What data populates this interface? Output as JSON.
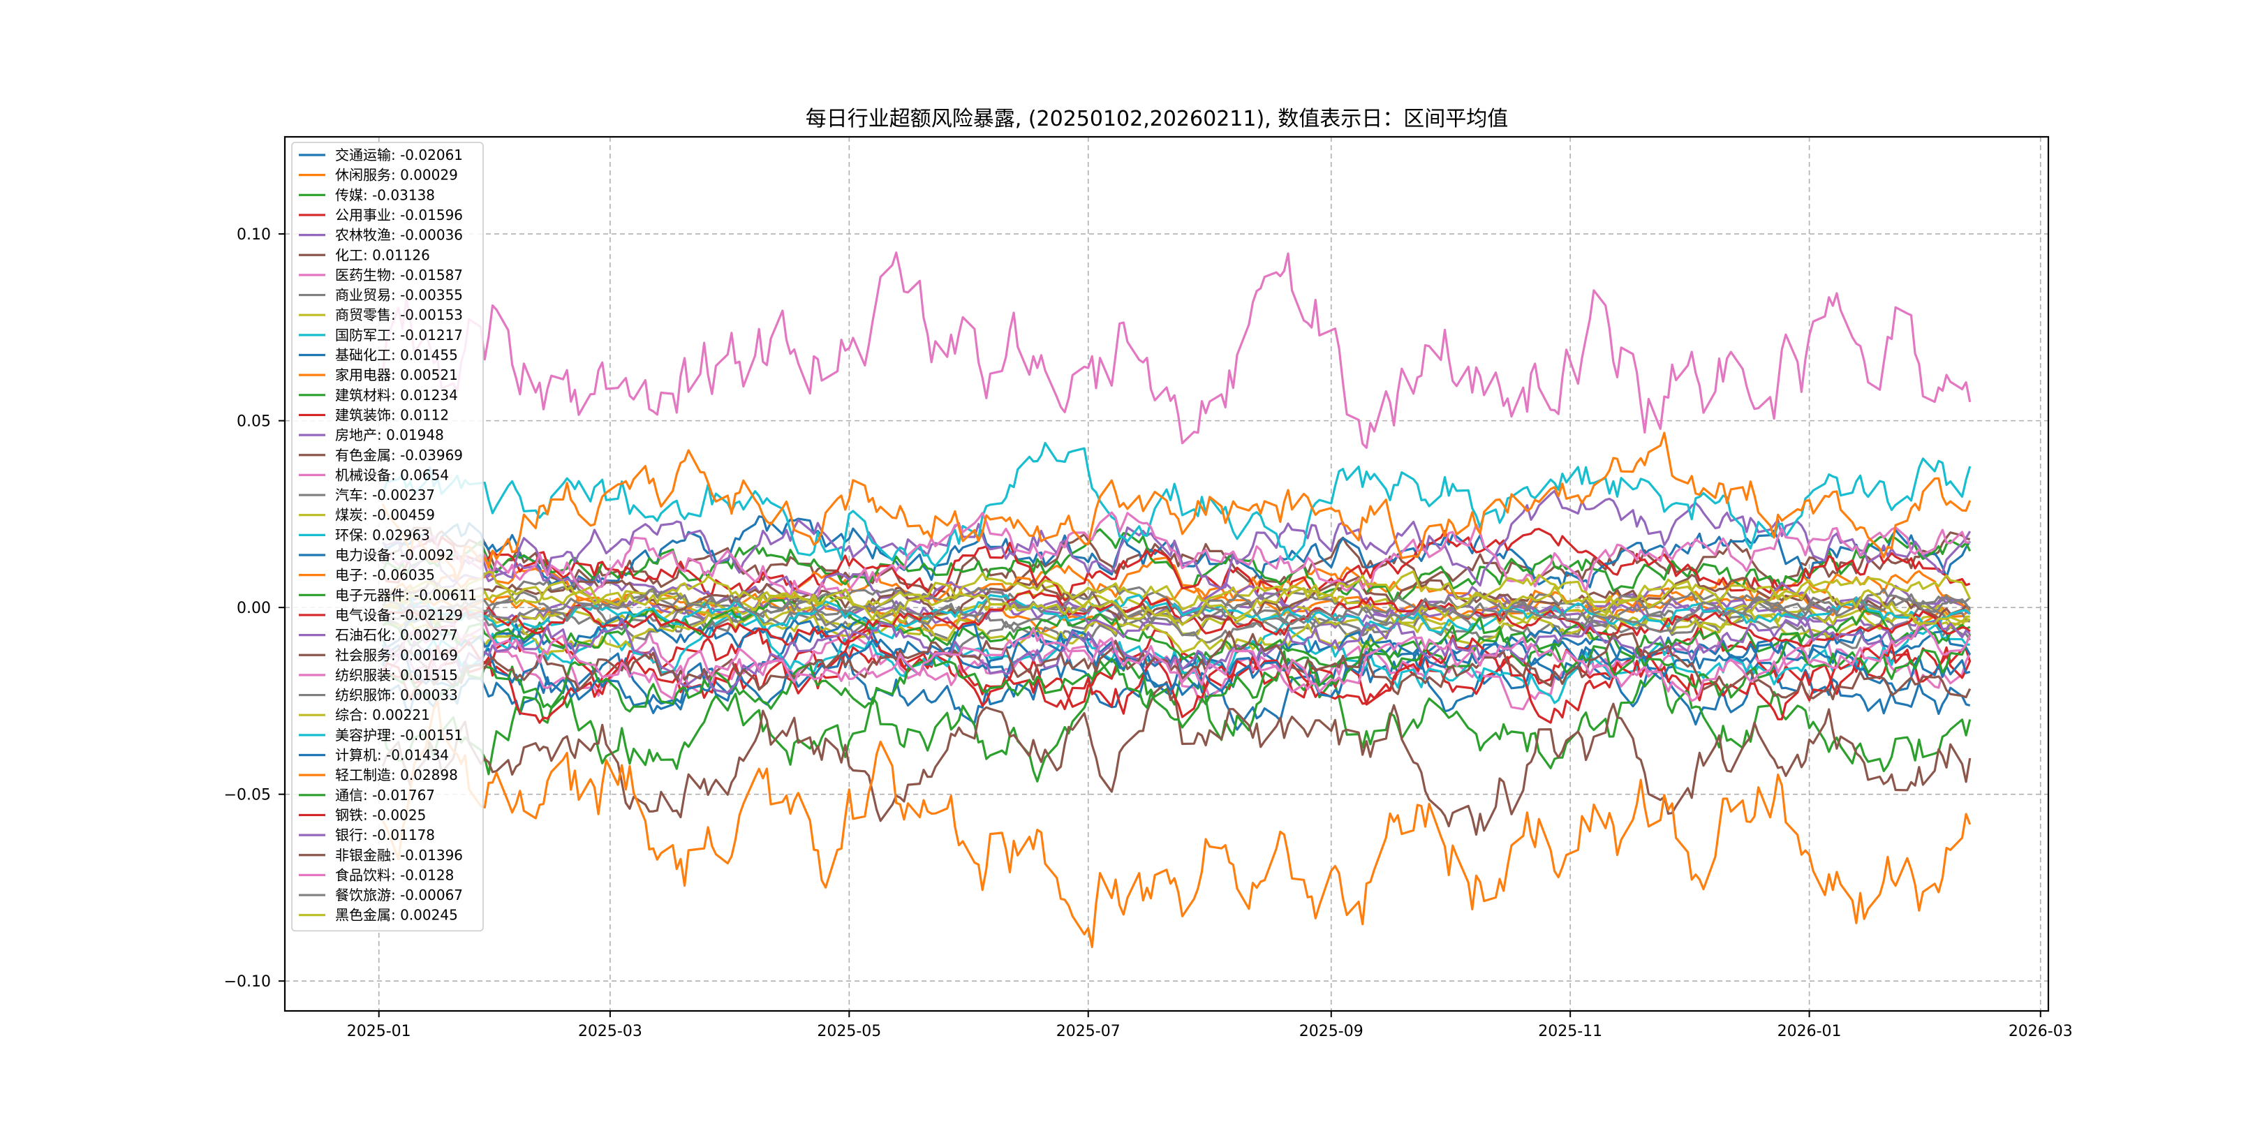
{
  "chart_data": {
    "type": "line",
    "title": "每日行业超额风险暴露, (20250102,20260211),  数值表示日：区间平均值",
    "xlabel": "",
    "ylabel": "",
    "x_start": "2025-01-02",
    "x_end": "2026-02-11",
    "xlim": [
      "2024-12-08",
      "2026-03-03"
    ],
    "ylim": [
      -0.108,
      0.126
    ],
    "x_ticks": [
      "2025-01-01",
      "2025-03-01",
      "2025-05-01",
      "2025-07-01",
      "2025-09-01",
      "2025-11-01",
      "2026-01-01",
      "2026-03-01"
    ],
    "x_tick_labels": [
      "2025-01",
      "2025-03",
      "2025-05",
      "2025-07",
      "2025-09",
      "2025-11",
      "2026-01",
      "2026-03"
    ],
    "y_ticks": [
      -0.1,
      -0.05,
      0.0,
      0.05,
      0.1
    ],
    "y_tick_labels": [
      "−0.10",
      "−0.05",
      "0.00",
      "0.05",
      "0.10"
    ],
    "grid": true,
    "legend_position": "top-left",
    "series": [
      {
        "name": "交通运输",
        "label": "交通运输: -0.02061",
        "color": "#1f77b4",
        "mean": -0.02061
      },
      {
        "name": "休闲服务",
        "label": "休闲服务: 0.00029",
        "color": "#ff7f0e",
        "mean": 0.00029
      },
      {
        "name": "传媒",
        "label": "传媒: -0.03138",
        "color": "#2ca02c",
        "mean": -0.03138
      },
      {
        "name": "公用事业",
        "label": "公用事业: -0.01596",
        "color": "#d62728",
        "mean": -0.01596
      },
      {
        "name": "农林牧渔",
        "label": "农林牧渔: -0.00036",
        "color": "#9467bd",
        "mean": -0.00036
      },
      {
        "name": "化工",
        "label": "化工: 0.01126",
        "color": "#8c564b",
        "mean": 0.01126
      },
      {
        "name": "医药生物",
        "label": "医药生物: -0.01587",
        "color": "#e377c2",
        "mean": -0.01587
      },
      {
        "name": "商业贸易",
        "label": "商业贸易: -0.00355",
        "color": "#7f7f7f",
        "mean": -0.00355
      },
      {
        "name": "商贸零售",
        "label": "商贸零售: -0.00153",
        "color": "#bcbd22",
        "mean": -0.00153
      },
      {
        "name": "国防军工",
        "label": "国防军工: -0.01217",
        "color": "#17becf",
        "mean": -0.01217
      },
      {
        "name": "基础化工",
        "label": "基础化工: 0.01455",
        "color": "#1f77b4",
        "mean": 0.01455
      },
      {
        "name": "家用电器",
        "label": "家用电器: 0.00521",
        "color": "#ff7f0e",
        "mean": 0.00521
      },
      {
        "name": "建筑材料",
        "label": "建筑材料: 0.01234",
        "color": "#2ca02c",
        "mean": 0.01234
      },
      {
        "name": "建筑装饰",
        "label": "建筑装饰: 0.0112",
        "color": "#d62728",
        "mean": 0.0112
      },
      {
        "name": "房地产",
        "label": "房地产: 0.01948",
        "color": "#9467bd",
        "mean": 0.01948
      },
      {
        "name": "有色金属",
        "label": "有色金属: -0.03969",
        "color": "#8c564b",
        "mean": -0.03969
      },
      {
        "name": "机械设备",
        "label": "机械设备: 0.0654",
        "color": "#e377c2",
        "mean": 0.0654
      },
      {
        "name": "汽车",
        "label": "汽车: -0.00237",
        "color": "#7f7f7f",
        "mean": -0.00237
      },
      {
        "name": "煤炭",
        "label": "煤炭: -0.00459",
        "color": "#bcbd22",
        "mean": -0.00459
      },
      {
        "name": "环保",
        "label": "环保: 0.02963",
        "color": "#17becf",
        "mean": 0.02963
      },
      {
        "name": "电力设备",
        "label": "电力设备: -0.0092",
        "color": "#1f77b4",
        "mean": -0.0092
      },
      {
        "name": "电子",
        "label": "电子: -0.06035",
        "color": "#ff7f0e",
        "mean": -0.06035
      },
      {
        "name": "电子元器件",
        "label": "电子元器件: -0.00611",
        "color": "#2ca02c",
        "mean": -0.00611
      },
      {
        "name": "电气设备",
        "label": "电气设备: -0.02129",
        "color": "#d62728",
        "mean": -0.02129
      },
      {
        "name": "石油石化",
        "label": "石油石化: 0.00277",
        "color": "#9467bd",
        "mean": 0.00277
      },
      {
        "name": "社会服务",
        "label": "社会服务: 0.00169",
        "color": "#8c564b",
        "mean": 0.00169
      },
      {
        "name": "纺织服装",
        "label": "纺织服装: 0.01515",
        "color": "#e377c2",
        "mean": 0.01515
      },
      {
        "name": "纺织服饰",
        "label": "纺织服饰: 0.00033",
        "color": "#7f7f7f",
        "mean": 0.00033
      },
      {
        "name": "综合",
        "label": "综合: 0.00221",
        "color": "#bcbd22",
        "mean": 0.00221
      },
      {
        "name": "美容护理",
        "label": "美容护理: -0.00151",
        "color": "#17becf",
        "mean": -0.00151
      },
      {
        "name": "计算机",
        "label": "计算机: -0.01434",
        "color": "#1f77b4",
        "mean": -0.01434
      },
      {
        "name": "轻工制造",
        "label": "轻工制造: 0.02898",
        "color": "#ff7f0e",
        "mean": 0.02898
      },
      {
        "name": "通信",
        "label": "通信: -0.01767",
        "color": "#2ca02c",
        "mean": -0.01767
      },
      {
        "name": "钢铁",
        "label": "钢铁: -0.0025",
        "color": "#d62728",
        "mean": -0.0025
      },
      {
        "name": "银行",
        "label": "银行: -0.01178",
        "color": "#9467bd",
        "mean": -0.01178
      },
      {
        "name": "非银金融",
        "label": "非银金融: -0.01396",
        "color": "#8c564b",
        "mean": -0.01396
      },
      {
        "name": "食品饮料",
        "label": "食品饮料: -0.0128",
        "color": "#e377c2",
        "mean": -0.0128
      },
      {
        "name": "餐饮旅游",
        "label": "餐饮旅游: -0.00067",
        "color": "#7f7f7f",
        "mean": -0.00067
      },
      {
        "name": "黑色金属",
        "label": "黑色金属: 0.00245",
        "color": "#bcbd22",
        "mean": 0.00245
      }
    ]
  }
}
